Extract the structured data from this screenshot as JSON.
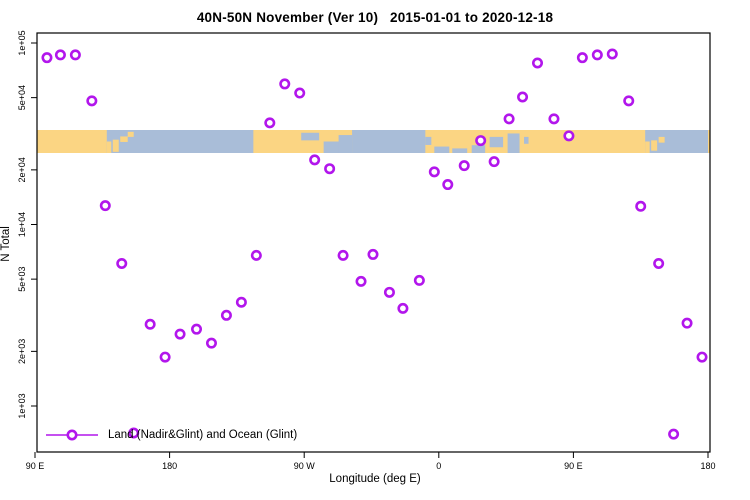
{
  "chart_data": {
    "type": "scatter",
    "title": "40N-50N November (Ver 10)   2015-01-01 to 2020-12-18",
    "xlabel": "Longitude (deg E)",
    "ylabel": "N Total",
    "y_log_scale": true,
    "x_axis_note": "longitude axis starts at 90E and wraps eastward to 180 (450 deg span)",
    "x_ticks": [
      {
        "axis_deg": 90,
        "label": "90 E"
      },
      {
        "axis_deg": 180,
        "label": "180"
      },
      {
        "axis_deg": 270,
        "label": "90 W"
      },
      {
        "axis_deg": 360,
        "label": "0"
      },
      {
        "axis_deg": 450,
        "label": "90 E"
      },
      {
        "axis_deg": 540,
        "label": "180"
      }
    ],
    "y_ticks": [
      {
        "value": 100000,
        "label": "1e+05"
      },
      {
        "value": 50000,
        "label": "5e+04"
      },
      {
        "value": 20000,
        "label": "2e+04"
      },
      {
        "value": 10000,
        "label": "1e+04"
      },
      {
        "value": 5000,
        "label": "5e+03"
      },
      {
        "value": 2000,
        "label": "2e+03"
      },
      {
        "value": 1000,
        "label": "1e+03"
      }
    ],
    "xlim_axis_deg": [
      90,
      540
    ],
    "legend": {
      "position": "bottom-left",
      "label": "Land (Nadir&Glint) and Ocean (Glint)"
    },
    "grid": false,
    "series": [
      {
        "name": "Land (Nadir&Glint) and Ocean (Glint)",
        "marker": "open-circle",
        "points": [
          {
            "lon": 98,
            "n": 83000
          },
          {
            "lon": 107,
            "n": 86000
          },
          {
            "lon": 117,
            "n": 86000
          },
          {
            "lon": 128,
            "n": 48000
          },
          {
            "lon": 137,
            "n": 12700
          },
          {
            "lon": 148,
            "n": 6100
          },
          {
            "lon": 156,
            "n": 710
          },
          {
            "lon": 167,
            "n": 2820
          },
          {
            "lon": 177,
            "n": 1860
          },
          {
            "lon": 187,
            "n": 2490
          },
          {
            "lon": 198,
            "n": 2650
          },
          {
            "lon": 208,
            "n": 2220
          },
          {
            "lon": 218,
            "n": 3160
          },
          {
            "lon": 228,
            "n": 3730
          },
          {
            "lon": 238,
            "n": 6760
          },
          {
            "lon": 247,
            "n": 36300
          },
          {
            "lon": 257,
            "n": 59500
          },
          {
            "lon": 267,
            "n": 53000
          },
          {
            "lon": 277,
            "n": 22700
          },
          {
            "lon": 287,
            "n": 20300
          },
          {
            "lon": 296,
            "n": 6760
          },
          {
            "lon": 308,
            "n": 4860
          },
          {
            "lon": 316,
            "n": 6840
          },
          {
            "lon": 327,
            "n": 4230
          },
          {
            "lon": 336,
            "n": 3450
          },
          {
            "lon": 347,
            "n": 4920
          },
          {
            "lon": 357,
            "n": 19500
          },
          {
            "lon": 366,
            "n": 16600
          },
          {
            "lon": 377,
            "n": 21100
          },
          {
            "lon": 388,
            "n": 29000
          },
          {
            "lon": 397,
            "n": 22200
          },
          {
            "lon": 407,
            "n": 38200
          },
          {
            "lon": 416,
            "n": 50400
          },
          {
            "lon": 426,
            "n": 77600
          },
          {
            "lon": 437,
            "n": 38200
          },
          {
            "lon": 447,
            "n": 30800
          },
          {
            "lon": 456,
            "n": 83000
          },
          {
            "lon": 466,
            "n": 86000
          },
          {
            "lon": 476,
            "n": 87000
          },
          {
            "lon": 487,
            "n": 48000
          },
          {
            "lon": 495,
            "n": 12600
          },
          {
            "lon": 507,
            "n": 6100
          },
          {
            "lon": 517,
            "n": 700
          },
          {
            "lon": 526,
            "n": 2860
          },
          {
            "lon": 536,
            "n": 1860
          }
        ]
      }
    ],
    "map_band": {
      "description": "40N-50N world-map strip drawn across plot; tan=land, blue=ocean",
      "ocean_patches": [
        {
          "lon0": 138,
          "lon1": 236,
          "f0": 0,
          "f1": 1
        },
        {
          "lon0": 268,
          "lon1": 280,
          "f0": 0.12,
          "f1": 0.45
        },
        {
          "lon0": 283,
          "lon1": 302,
          "f0": 0.5,
          "f1": 1
        },
        {
          "lon0": 293,
          "lon1": 302,
          "f0": 0.22,
          "f1": 1
        },
        {
          "lon0": 302,
          "lon1": 351,
          "f0": 0,
          "f1": 1
        },
        {
          "lon0": 351,
          "lon1": 355,
          "f0": 0.3,
          "f1": 0.65
        },
        {
          "lon0": 357,
          "lon1": 367,
          "f0": 0.72,
          "f1": 1
        },
        {
          "lon0": 369,
          "lon1": 379,
          "f0": 0.8,
          "f1": 1
        },
        {
          "lon0": 382,
          "lon1": 391,
          "f0": 0.66,
          "f1": 1
        },
        {
          "lon0": 394,
          "lon1": 403,
          "f0": 0.3,
          "f1": 0.75
        },
        {
          "lon0": 406,
          "lon1": 414,
          "f0": 0.15,
          "f1": 1
        },
        {
          "lon0": 417,
          "lon1": 420,
          "f0": 0.3,
          "f1": 0.6
        },
        {
          "lon0": 498,
          "lon1": 540,
          "f0": 0,
          "f1": 1
        }
      ],
      "land_patches": [
        {
          "lon0": 138,
          "lon1": 141,
          "f0": 0.5,
          "f1": 1
        },
        {
          "lon0": 142,
          "lon1": 146,
          "f0": 0.42,
          "f1": 0.95
        },
        {
          "lon0": 147,
          "lon1": 152,
          "f0": 0.28,
          "f1": 0.52
        },
        {
          "lon0": 152,
          "lon1": 156,
          "f0": 0.08,
          "f1": 0.3
        },
        {
          "lon0": 498,
          "lon1": 501,
          "f0": 0.5,
          "f1": 1
        },
        {
          "lon0": 502,
          "lon1": 506,
          "f0": 0.45,
          "f1": 0.9
        },
        {
          "lon0": 507,
          "lon1": 511,
          "f0": 0.3,
          "f1": 0.55
        }
      ]
    },
    "colors": {
      "point": "#B216EC",
      "land": "#FBD583",
      "ocean": "#A9BDD8",
      "axis": "#000000",
      "background": "#FFFFFF"
    }
  }
}
